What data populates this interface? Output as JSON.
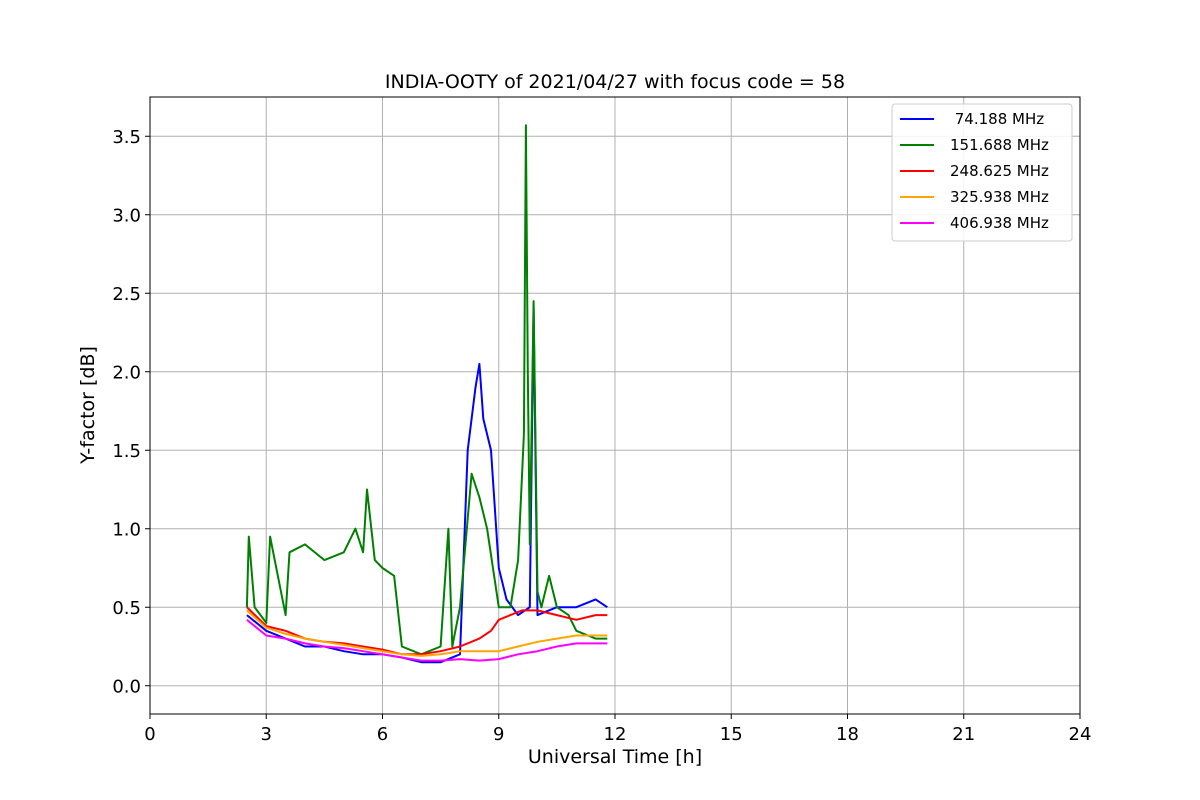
{
  "chart_data": {
    "type": "line",
    "title": "INDIA-OOTY of 2021/04/27 with focus code = 58",
    "xlabel": "Universal Time [h]",
    "ylabel": "Y-factor [dB]",
    "xlim": [
      0,
      24
    ],
    "ylim": [
      -0.18,
      3.75
    ],
    "xticks": [
      0,
      3,
      6,
      9,
      12,
      15,
      18,
      21,
      24
    ],
    "yticks": [
      0.0,
      0.5,
      1.0,
      1.5,
      2.0,
      2.5,
      3.0,
      3.5
    ],
    "ytick_labels": [
      "0.0",
      "0.5",
      "1.0",
      "1.5",
      "2.0",
      "2.5",
      "3.0",
      "3.5"
    ],
    "grid": true,
    "legend_position": "top-right",
    "series": [
      {
        "name": " 74.188 MHz",
        "color": "#0000ff",
        "x": [
          2.5,
          3.0,
          3.5,
          4.0,
          4.5,
          5.0,
          5.5,
          6.0,
          6.5,
          7.0,
          7.5,
          8.0,
          8.2,
          8.4,
          8.5,
          8.6,
          8.8,
          9.0,
          9.2,
          9.5,
          9.8,
          9.9,
          10.0,
          10.5,
          11.0,
          11.5,
          11.8
        ],
        "y": [
          0.45,
          0.35,
          0.3,
          0.25,
          0.25,
          0.22,
          0.2,
          0.2,
          0.18,
          0.15,
          0.15,
          0.2,
          1.5,
          1.9,
          2.05,
          1.7,
          1.5,
          0.75,
          0.55,
          0.45,
          0.5,
          2.4,
          0.45,
          0.5,
          0.5,
          0.55,
          0.5
        ]
      },
      {
        "name": "151.688 MHz",
        "color": "#008000",
        "x": [
          2.5,
          2.55,
          2.7,
          3.0,
          3.1,
          3.5,
          3.6,
          4.0,
          4.5,
          5.0,
          5.3,
          5.5,
          5.6,
          5.8,
          6.0,
          6.3,
          6.5,
          7.0,
          7.5,
          7.7,
          7.8,
          8.0,
          8.3,
          8.5,
          8.7,
          9.0,
          9.3,
          9.5,
          9.65,
          9.7,
          9.75,
          9.8,
          9.9,
          10.0,
          10.1,
          10.3,
          10.5,
          10.8,
          11.0,
          11.5,
          11.8
        ],
        "y": [
          0.5,
          0.95,
          0.5,
          0.4,
          0.95,
          0.45,
          0.85,
          0.9,
          0.8,
          0.85,
          1.0,
          0.85,
          1.25,
          0.8,
          0.75,
          0.7,
          0.25,
          0.2,
          0.25,
          1.0,
          0.25,
          0.5,
          1.35,
          1.2,
          1.0,
          0.5,
          0.5,
          0.8,
          1.6,
          3.57,
          2.0,
          0.9,
          2.45,
          0.6,
          0.5,
          0.7,
          0.5,
          0.45,
          0.35,
          0.3,
          0.3
        ]
      },
      {
        "name": "248.625 MHz",
        "color": "#ff0000",
        "x": [
          2.5,
          3.0,
          3.5,
          4.0,
          4.5,
          5.0,
          5.5,
          6.0,
          6.5,
          7.0,
          7.5,
          8.0,
          8.5,
          8.8,
          9.0,
          9.3,
          9.6,
          10.0,
          10.5,
          11.0,
          11.5,
          11.8
        ],
        "y": [
          0.5,
          0.38,
          0.35,
          0.3,
          0.28,
          0.27,
          0.25,
          0.23,
          0.2,
          0.2,
          0.22,
          0.25,
          0.3,
          0.35,
          0.42,
          0.45,
          0.48,
          0.48,
          0.45,
          0.42,
          0.45,
          0.45
        ]
      },
      {
        "name": "325.938 MHz",
        "color": "#ffa500",
        "x": [
          2.5,
          3.0,
          3.5,
          4.0,
          4.5,
          5.0,
          5.5,
          6.0,
          6.5,
          7.0,
          7.5,
          8.0,
          8.5,
          9.0,
          9.5,
          10.0,
          10.5,
          11.0,
          11.5,
          11.8
        ],
        "y": [
          0.48,
          0.37,
          0.33,
          0.3,
          0.28,
          0.26,
          0.24,
          0.22,
          0.2,
          0.19,
          0.2,
          0.22,
          0.22,
          0.22,
          0.25,
          0.28,
          0.3,
          0.32,
          0.32,
          0.32
        ]
      },
      {
        "name": "406.938 MHz",
        "color": "#ff00ff",
        "x": [
          2.5,
          3.0,
          3.5,
          4.0,
          4.5,
          5.0,
          5.5,
          6.0,
          6.5,
          7.0,
          7.5,
          8.0,
          8.5,
          9.0,
          9.5,
          10.0,
          10.5,
          11.0,
          11.5,
          11.8
        ],
        "y": [
          0.42,
          0.32,
          0.3,
          0.27,
          0.25,
          0.24,
          0.22,
          0.2,
          0.18,
          0.16,
          0.16,
          0.17,
          0.16,
          0.17,
          0.2,
          0.22,
          0.25,
          0.27,
          0.27,
          0.27
        ]
      }
    ]
  }
}
